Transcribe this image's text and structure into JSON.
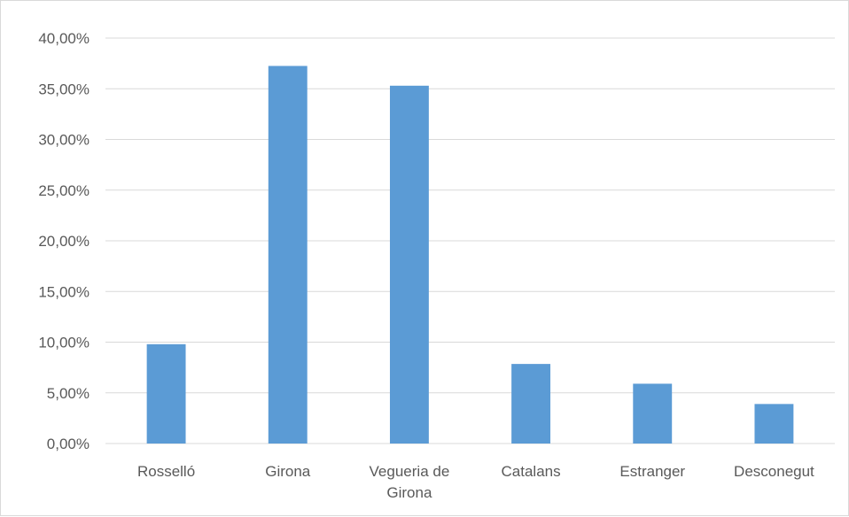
{
  "chart_data": {
    "type": "bar",
    "categories": [
      [
        "Rosselló"
      ],
      [
        "Girona"
      ],
      [
        "Vegueria de",
        "Girona"
      ],
      [
        "Catalans"
      ],
      [
        "Estranger"
      ],
      [
        "Desconegut"
      ]
    ],
    "values": [
      9.8,
      37.25,
      35.3,
      7.85,
      5.9,
      3.9
    ],
    "yticks": [
      "0,00%",
      "5,00%",
      "10,00%",
      "15,00%",
      "20,00%",
      "25,00%",
      "30,00%",
      "35,00%",
      "40,00%"
    ],
    "ylim": [
      0,
      40
    ],
    "ytick_step": 5,
    "grid": true,
    "legend": "none",
    "colors": {
      "bar": "#5b9bd5",
      "grid": "#d9d9d9",
      "text": "#595959"
    }
  }
}
